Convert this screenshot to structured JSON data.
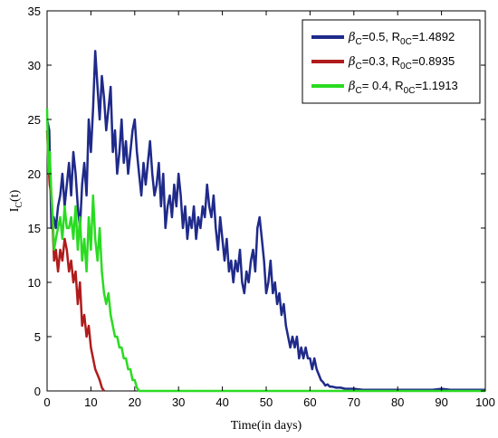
{
  "chart_data": {
    "type": "line",
    "title": "",
    "xlabel": "Time(in days)",
    "ylabel": {
      "main": "I",
      "sub": "C",
      "tail": "(t)"
    },
    "xlim": [
      0,
      100
    ],
    "ylim": [
      0,
      35
    ],
    "xticks": [
      0,
      10,
      20,
      30,
      40,
      50,
      60,
      70,
      80,
      90,
      100
    ],
    "yticks": [
      0,
      5,
      10,
      15,
      20,
      25,
      30,
      35
    ],
    "grid": false,
    "legend_position": "top-right",
    "series": [
      {
        "legend": {
          "beta": "β",
          "bsub": "C",
          "bval": "=0.5, R",
          "rsub": "0C",
          "rval": "=1.4892"
        },
        "color": "#1f2a8a",
        "x": [
          0,
          0.5,
          1,
          1.5,
          2,
          2.5,
          3,
          3.5,
          4,
          4.5,
          5,
          5.5,
          6,
          6.5,
          7,
          7.5,
          8,
          8.5,
          9,
          9.5,
          10,
          10.5,
          11,
          11.5,
          12,
          12.5,
          13,
          13.5,
          14,
          14.5,
          15,
          15.5,
          16,
          16.5,
          17,
          17.5,
          18,
          18.5,
          19,
          19.5,
          20,
          20.5,
          21,
          21.5,
          22,
          22.5,
          23,
          23.5,
          24,
          24.5,
          25,
          25.5,
          26,
          26.5,
          27,
          27.5,
          28,
          28.5,
          29,
          29.5,
          30,
          30.5,
          31,
          31.5,
          32,
          32.5,
          33,
          33.5,
          34,
          34.5,
          35,
          35.5,
          36,
          36.5,
          37,
          37.5,
          38,
          38.5,
          39,
          39.5,
          40,
          40.5,
          41,
          41.5,
          42,
          42.5,
          43,
          43.5,
          44,
          44.5,
          45,
          45.5,
          46,
          46.5,
          47,
          47.5,
          48,
          48.5,
          49,
          49.5,
          50,
          50.5,
          51,
          51.5,
          52,
          52.5,
          53,
          53.5,
          54,
          54.5,
          55,
          55.5,
          56,
          56.5,
          57,
          57.5,
          58,
          58.5,
          59,
          59.5,
          60,
          60.5,
          61,
          61.5,
          62,
          62.5,
          63,
          63.5,
          64,
          64.5,
          65,
          66,
          67,
          68,
          69,
          70,
          72,
          74,
          76,
          78,
          80,
          82,
          84,
          86,
          88,
          90,
          92,
          94,
          96,
          98,
          100
        ],
        "y": [
          25,
          24,
          15,
          16,
          15,
          17,
          18,
          20,
          17,
          19,
          21,
          18,
          22,
          20,
          17,
          15,
          19,
          21,
          18,
          25,
          22,
          26,
          31.3,
          28,
          25,
          29,
          27,
          24,
          26,
          28,
          22,
          24,
          20,
          22,
          25,
          21,
          23,
          20,
          22,
          24,
          25,
          22,
          20,
          18,
          21,
          19,
          21,
          23,
          20,
          18,
          19,
          21,
          17,
          20,
          15,
          17,
          18,
          16,
          19,
          17,
          20,
          18,
          15,
          17,
          14,
          16,
          15,
          17,
          14,
          16,
          15,
          17,
          16,
          19,
          17,
          16,
          18,
          15,
          13,
          16,
          14,
          12,
          14,
          11,
          12,
          10,
          12,
          11,
          13,
          10,
          9,
          11,
          10,
          12,
          13,
          11,
          15,
          16,
          14,
          12,
          9,
          10,
          12,
          9,
          10,
          8,
          9,
          7,
          8,
          6,
          5,
          4,
          5,
          4,
          5,
          3,
          4,
          3,
          4,
          3,
          3,
          2,
          3,
          2,
          1.5,
          1,
          0.8,
          0.5,
          0.6,
          0.4,
          0.4,
          0.3,
          0.3,
          0.2,
          0.2,
          0.2,
          0.1,
          0.1,
          0.1,
          0.1,
          0.1,
          0.1,
          0.1,
          0.1,
          0.1,
          0.2,
          0.1,
          0.1,
          0.1,
          0.1,
          0.1
        ]
      },
      {
        "legend": {
          "beta": "β",
          "bsub": "C",
          "bval": "=0.3, R",
          "rsub": "0C",
          "rval": "=0.8935"
        },
        "color": "#b01c1c",
        "x": [
          0,
          0.3,
          0.6,
          1,
          1.3,
          1.6,
          2,
          2.5,
          3,
          3.5,
          4,
          4.5,
          5,
          5.5,
          6,
          6.5,
          7,
          7.5,
          8,
          8.5,
          9,
          9.5,
          10,
          10.5,
          11,
          11.5,
          12,
          12.5,
          13
        ],
        "y": [
          24,
          21,
          19,
          18,
          15,
          12,
          13,
          11,
          13,
          12,
          14,
          13,
          11,
          12,
          10,
          11,
          8,
          10,
          6,
          7,
          5,
          6,
          4,
          3,
          2,
          1.5,
          1,
          0.3,
          0
        ]
      },
      {
        "legend": {
          "beta": "β",
          "bsub": "C",
          "bval": "= 0.4, R",
          "rsub": "0C",
          "rval": "=1.1913"
        },
        "color": "#2bdb22",
        "x": [
          0,
          0.3,
          0.6,
          1,
          1.3,
          1.6,
          2,
          2.5,
          3,
          3.5,
          4,
          4.5,
          5,
          5.5,
          6,
          6.5,
          7,
          7.5,
          8,
          8.5,
          9,
          9.5,
          10,
          10.5,
          11,
          11.5,
          12,
          12.5,
          13,
          13.5,
          14,
          14.5,
          15,
          15.5,
          16,
          16.5,
          17,
          17.5,
          18,
          18.5,
          19,
          19.5,
          20,
          20.5,
          21,
          22,
          30,
          40,
          50,
          60,
          70,
          80,
          90,
          100
        ],
        "y": [
          26,
          20,
          22,
          18,
          16,
          13,
          14,
          15,
          16,
          14,
          17,
          15,
          15,
          16,
          14,
          17,
          13,
          16,
          12,
          14,
          11,
          16,
          13,
          18,
          14,
          12,
          15,
          11,
          9,
          8,
          9,
          7,
          6,
          5,
          5,
          4,
          4,
          3,
          3,
          2,
          2,
          1,
          1,
          0.3,
          0,
          0,
          0,
          0,
          0,
          0,
          0,
          0,
          0,
          0
        ]
      }
    ]
  }
}
